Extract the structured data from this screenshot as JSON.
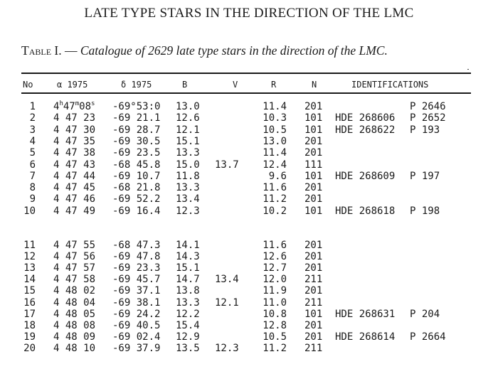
{
  "page_title": "LATE TYPE STARS IN THE DIRECTION OF THE LMC",
  "caption": {
    "label": "Table I. —",
    "text": "Catalogue of 2629 late type stars in the direction of the LMC."
  },
  "table": {
    "headers": {
      "no": "No",
      "ra": "α  1975",
      "dec": "δ  1975",
      "b": "B",
      "v": "V",
      "r": "R",
      "n": "N",
      "ids": "IDENTIFICATIONS"
    },
    "first_row_ra": {
      "h": "4",
      "h_unit": "h",
      "m": "47",
      "m_unit": "m",
      "s": "08",
      "s_unit": "s"
    },
    "rows": [
      {
        "no": "1",
        "ra": "",
        "dec": "-69°53:0",
        "b": "13.0",
        "v": "",
        "r": "11.4",
        "n": "201",
        "hde": "",
        "p": "P 2646"
      },
      {
        "no": "2",
        "ra": "4 47 23",
        "dec": "-69 21.1",
        "b": "12.6",
        "v": "",
        "r": "10.3",
        "n": "101",
        "hde": "HDE 268606",
        "p": "P 2652"
      },
      {
        "no": "3",
        "ra": "4 47 30",
        "dec": "-69 28.7",
        "b": "12.1",
        "v": "",
        "r": "10.5",
        "n": "101",
        "hde": "HDE 268622",
        "p": "P  193"
      },
      {
        "no": "4",
        "ra": "4 47 35",
        "dec": "-69 30.5",
        "b": "15.1",
        "v": "",
        "r": "13.0",
        "n": "201",
        "hde": "",
        "p": ""
      },
      {
        "no": "5",
        "ra": "4 47 38",
        "dec": "-69 23.5",
        "b": "13.3",
        "v": "",
        "r": "11.4",
        "n": "201",
        "hde": "",
        "p": ""
      },
      {
        "no": "6",
        "ra": "4 47 43",
        "dec": "-68 45.8",
        "b": "15.0",
        "v": "13.7",
        "r": "12.4",
        "n": "111",
        "hde": "",
        "p": ""
      },
      {
        "no": "7",
        "ra": "4 47 44",
        "dec": "-69 10.7",
        "b": "11.8",
        "v": "",
        "r": "9.6",
        "n": "101",
        "hde": "HDE 268609",
        "p": "P  197"
      },
      {
        "no": "8",
        "ra": "4 47 45",
        "dec": "-68 21.8",
        "b": "13.3",
        "v": "",
        "r": "11.6",
        "n": "201",
        "hde": "",
        "p": ""
      },
      {
        "no": "9",
        "ra": "4 47 46",
        "dec": "-69 52.2",
        "b": "13.4",
        "v": "",
        "r": "11.2",
        "n": "201",
        "hde": "",
        "p": ""
      },
      {
        "no": "10",
        "ra": "4 47 49",
        "dec": "-69 16.4",
        "b": "12.3",
        "v": "",
        "r": "10.2",
        "n": "101",
        "hde": "HDE 268618",
        "p": "P  198"
      },
      {
        "no": "11",
        "ra": "4 47 55",
        "dec": "-68 47.3",
        "b": "14.1",
        "v": "",
        "r": "11.6",
        "n": "201",
        "hde": "",
        "p": ""
      },
      {
        "no": "12",
        "ra": "4 47 56",
        "dec": "-69 47.8",
        "b": "14.3",
        "v": "",
        "r": "12.6",
        "n": "201",
        "hde": "",
        "p": ""
      },
      {
        "no": "13",
        "ra": "4 47 57",
        "dec": "-69 23.3",
        "b": "15.1",
        "v": "",
        "r": "12.7",
        "n": "201",
        "hde": "",
        "p": ""
      },
      {
        "no": "14",
        "ra": "4 47 58",
        "dec": "-69 45.7",
        "b": "14.7",
        "v": "13.4",
        "r": "12.0",
        "n": "211",
        "hde": "",
        "p": ""
      },
      {
        "no": "15",
        "ra": "4 48 02",
        "dec": "-69 37.1",
        "b": "13.8",
        "v": "",
        "r": "11.9",
        "n": "201",
        "hde": "",
        "p": ""
      },
      {
        "no": "16",
        "ra": "4 48 04",
        "dec": "-69 38.1",
        "b": "13.3",
        "v": "12.1",
        "r": "11.0",
        "n": "211",
        "hde": "",
        "p": ""
      },
      {
        "no": "17",
        "ra": "4 48 05",
        "dec": "-69 24.2",
        "b": "12.2",
        "v": "",
        "r": "10.8",
        "n": "101",
        "hde": "HDE 268631",
        "p": "P  204"
      },
      {
        "no": "18",
        "ra": "4 48 08",
        "dec": "-69 40.5",
        "b": "15.4",
        "v": "",
        "r": "12.8",
        "n": "201",
        "hde": "",
        "p": ""
      },
      {
        "no": "19",
        "ra": "4 48 09",
        "dec": "-69 02.4",
        "b": "12.9",
        "v": "",
        "r": "10.5",
        "n": "201",
        "hde": "HDE 268614",
        "p": "P 2664"
      },
      {
        "no": "20",
        "ra": "4 48 10",
        "dec": "-69 37.9",
        "b": "13.5",
        "v": "12.3",
        "r": "11.2",
        "n": "211",
        "hde": "",
        "p": ""
      }
    ]
  }
}
